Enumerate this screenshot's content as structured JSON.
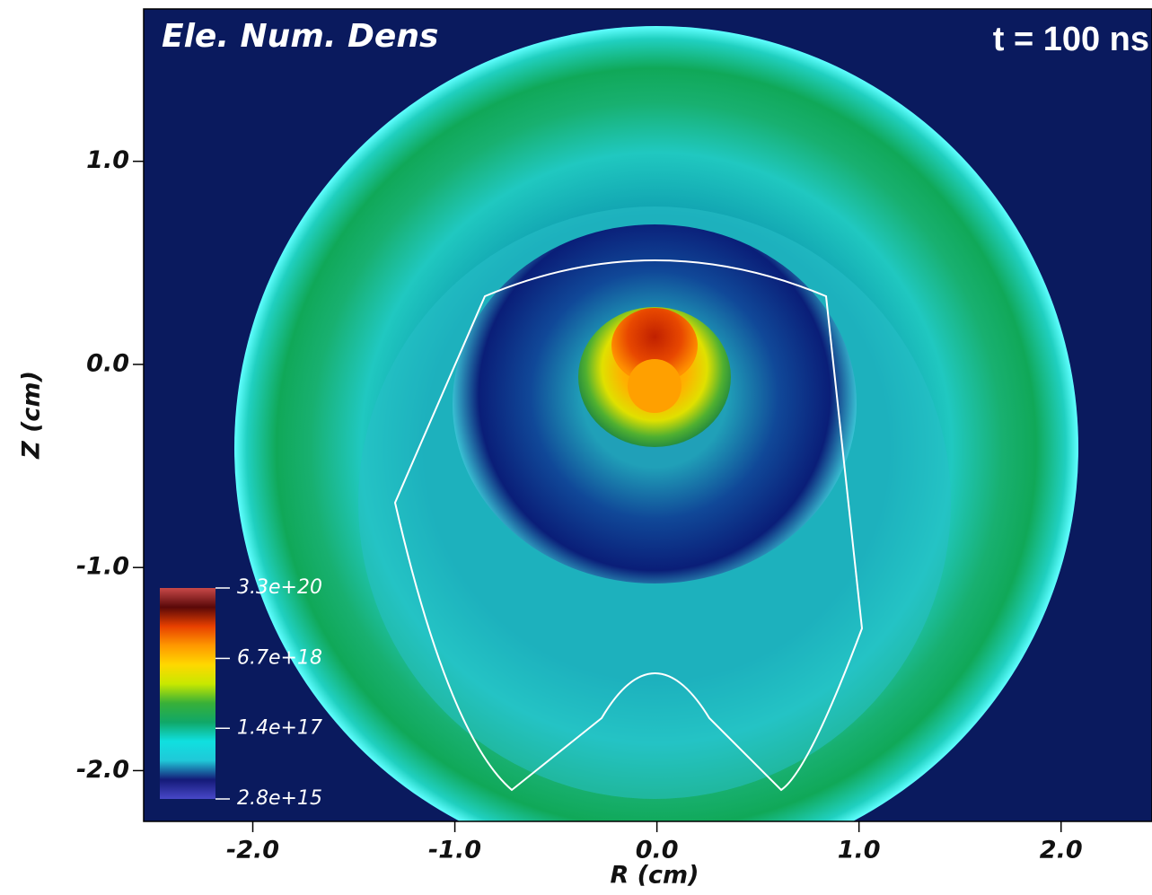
{
  "chart_data": {
    "type": "field",
    "title": "Ele. Num. Dens",
    "annotation": "t = 100 ns",
    "x_label": "R (cm)",
    "y_label": "Z (cm)",
    "xlim": [
      -2.54,
      2.45
    ],
    "ylim": [
      -2.25,
      1.75
    ],
    "xticks": [
      {
        "value": -2,
        "label": "-2.0"
      },
      {
        "value": -1,
        "label": "-1.0"
      },
      {
        "value": 0,
        "label": "0.0"
      },
      {
        "value": 1,
        "label": "1.0"
      },
      {
        "value": 2,
        "label": "2.0"
      }
    ],
    "yticks": [
      {
        "value": -2,
        "label": "-2.0"
      },
      {
        "value": -1,
        "label": "-1.0"
      },
      {
        "value": 0,
        "label": "0.0"
      },
      {
        "value": 1,
        "label": "1.0"
      }
    ],
    "colorbar": {
      "log_scale": true,
      "lim": [
        2800000000000000.0,
        3.3e+20
      ],
      "ticks": [
        {
          "value": 3.3e+20,
          "label": "3.3e+20"
        },
        {
          "value": 6.7e+18,
          "label": "6.7e+18"
        },
        {
          "value": 1.4e+17,
          "label": "1.4e+17"
        },
        {
          "value": 2800000000000000.0,
          "label": "2.8e+15"
        }
      ],
      "colors": [
        "#4848c8",
        "#141a78",
        "#20c8d8",
        "#10e0e0",
        "#10a868",
        "#38b038",
        "#c8e800",
        "#ffd800",
        "#ff9800",
        "#e84000",
        "#5a0808",
        "#c84848"
      ]
    }
  }
}
